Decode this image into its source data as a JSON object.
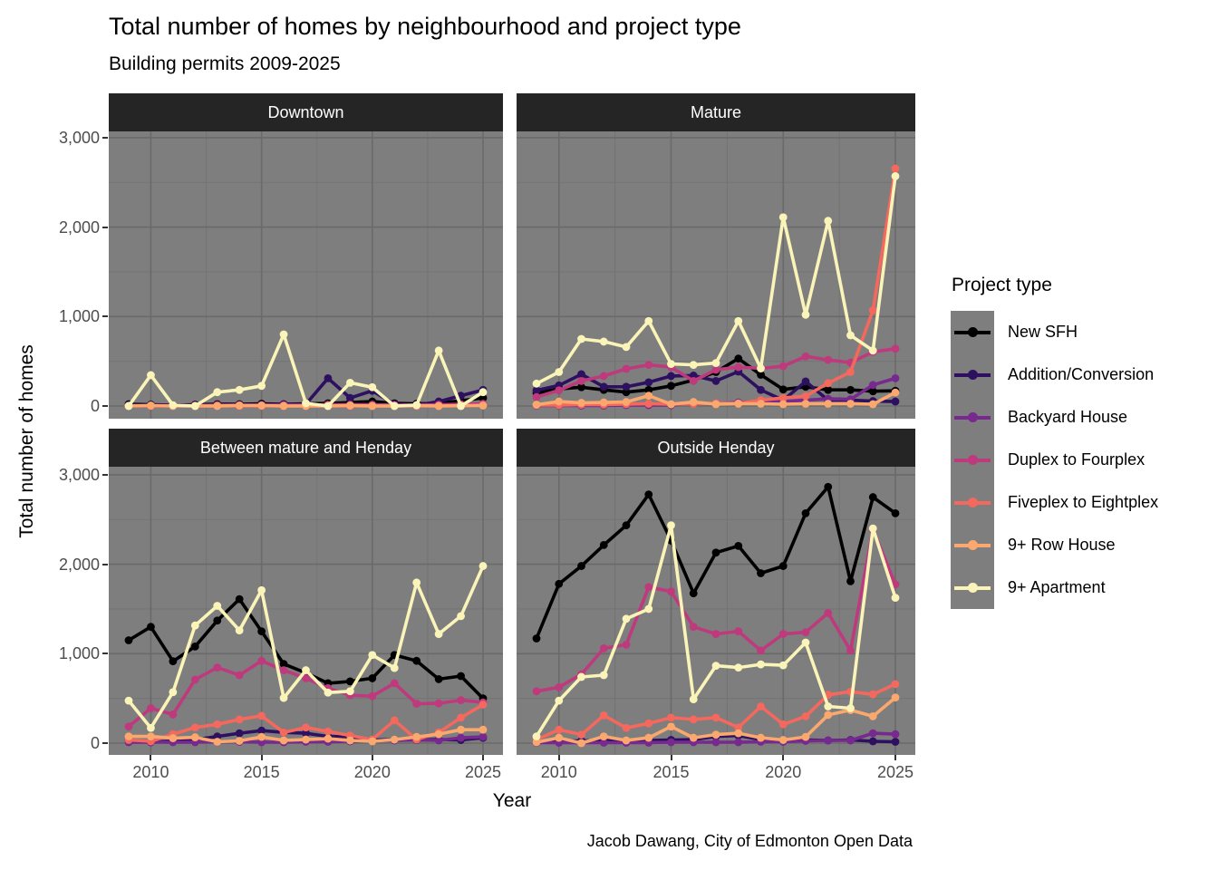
{
  "chart_data": {
    "type": "line",
    "title": "Total number of homes by neighbourhood and project type",
    "subtitle": "Building permits 2009-2025",
    "caption": "Jacob Dawang, City of Edmonton Open Data",
    "xlabel": "Year",
    "ylabel": "Total number of homes",
    "legend_title": "Project type",
    "legend_position": "right",
    "grid": true,
    "x": [
      2009,
      2010,
      2011,
      2012,
      2013,
      2014,
      2015,
      2016,
      2017,
      2018,
      2019,
      2020,
      2021,
      2022,
      2023,
      2024,
      2025
    ],
    "x_tick_years": [
      2010,
      2015,
      2020,
      2025
    ],
    "x_tick_labels": [
      "2010",
      "2015",
      "2020",
      "2025"
    ],
    "x_minor_years": [
      2012.5,
      2017.5,
      2022.5
    ],
    "y_ticks": [
      {
        "value": 0,
        "label": "0"
      },
      {
        "value": 1000,
        "label": "1,000"
      },
      {
        "value": 2000,
        "label": "2,000"
      },
      {
        "value": 3000,
        "label": "3,000"
      }
    ],
    "y_minor": [
      500,
      1500,
      2500
    ],
    "ylim": [
      0,
      3050
    ],
    "panel_background": "#7E7E7E",
    "grid_major_color": "#6A6A6A",
    "grid_minor_color": "#747474",
    "strip_background": "#252525",
    "strip_text_color": "#FFFFFF",
    "axis_text_color": "#4D4D4D",
    "series_names": [
      "New SFH",
      "Addition/Conversion",
      "Backyard House",
      "Duplex to Fourplex",
      "Fiveplex to Eightplex",
      "9+ Row House",
      "9+ Apartment"
    ],
    "series_colors": [
      "#000000",
      "#2D1160",
      "#78298F",
      "#BE3A7D",
      "#F4685E",
      "#FBA86F",
      "#FAF4B8"
    ],
    "facets": [
      {
        "title": "Downtown",
        "series": [
          [
            20,
            15,
            10,
            15,
            20,
            20,
            25,
            20,
            25,
            30,
            40,
            50,
            30,
            25,
            30,
            60,
            90
          ],
          [
            10,
            10,
            10,
            10,
            10,
            15,
            15,
            20,
            20,
            310,
            90,
            170,
            20,
            10,
            50,
            115,
            180
          ],
          [
            0,
            0,
            0,
            0,
            0,
            0,
            0,
            0,
            0,
            0,
            0,
            5,
            5,
            5,
            10,
            10,
            15
          ],
          [
            5,
            5,
            5,
            5,
            10,
            10,
            10,
            10,
            10,
            15,
            15,
            15,
            10,
            10,
            15,
            20,
            25
          ],
          [
            0,
            0,
            0,
            0,
            0,
            0,
            0,
            0,
            0,
            0,
            0,
            0,
            0,
            0,
            0,
            0,
            10
          ],
          [
            0,
            5,
            0,
            0,
            0,
            5,
            5,
            0,
            0,
            0,
            5,
            0,
            0,
            5,
            0,
            5,
            5
          ],
          [
            0,
            345,
            10,
            0,
            155,
            180,
            225,
            800,
            30,
            0,
            260,
            210,
            0,
            10,
            620,
            0,
            155
          ]
        ]
      },
      {
        "title": "Mature",
        "series": [
          [
            145,
            190,
            210,
            180,
            155,
            180,
            225,
            290,
            380,
            530,
            350,
            185,
            215,
            180,
            180,
            165,
            170
          ],
          [
            175,
            230,
            355,
            215,
            215,
            265,
            335,
            340,
            280,
            385,
            180,
            65,
            275,
            65,
            65,
            55,
            50
          ],
          [
            5,
            5,
            5,
            5,
            10,
            10,
            10,
            30,
            25,
            40,
            50,
            50,
            65,
            80,
            75,
            235,
            310
          ],
          [
            100,
            175,
            280,
            335,
            415,
            460,
            435,
            280,
            405,
            435,
            420,
            445,
            555,
            515,
            485,
            605,
            640
          ],
          [
            10,
            10,
            15,
            15,
            20,
            25,
            20,
            25,
            30,
            30,
            65,
            90,
            110,
            255,
            380,
            1070,
            2655
          ],
          [
            15,
            50,
            35,
            40,
            45,
            115,
            20,
            45,
            20,
            25,
            25,
            20,
            25,
            25,
            25,
            20,
            150
          ],
          [
            250,
            380,
            750,
            720,
            660,
            950,
            470,
            460,
            480,
            950,
            420,
            2110,
            1020,
            2070,
            790,
            620,
            2570
          ]
        ]
      },
      {
        "title": "Between mature and Henday",
        "series": [
          [
            1150,
            1300,
            915,
            1080,
            1370,
            1610,
            1250,
            885,
            785,
            670,
            690,
            725,
            985,
            920,
            715,
            750,
            500
          ],
          [
            35,
            10,
            25,
            40,
            75,
            110,
            140,
            120,
            110,
            75,
            70,
            35,
            40,
            35,
            40,
            35,
            60
          ],
          [
            10,
            10,
            10,
            10,
            15,
            15,
            10,
            10,
            15,
            15,
            20,
            25,
            30,
            35,
            30,
            60,
            70
          ],
          [
            185,
            390,
            320,
            710,
            845,
            760,
            920,
            815,
            725,
            615,
            535,
            525,
            670,
            440,
            445,
            480,
            455
          ],
          [
            35,
            20,
            100,
            175,
            210,
            265,
            305,
            120,
            175,
            130,
            85,
            40,
            255,
            40,
            120,
            285,
            430
          ],
          [
            75,
            75,
            55,
            65,
            15,
            25,
            70,
            30,
            40,
            50,
            30,
            20,
            40,
            70,
            100,
            150,
            150
          ],
          [
            475,
            170,
            570,
            1315,
            1535,
            1260,
            1710,
            505,
            815,
            565,
            580,
            985,
            840,
            1795,
            1220,
            1420,
            1980
          ]
        ]
      },
      {
        "title": "Outside Henday",
        "series": [
          [
            1170,
            1780,
            1980,
            2215,
            2435,
            2780,
            2265,
            1675,
            2130,
            2205,
            1900,
            1980,
            2570,
            2865,
            1810,
            2750,
            2570
          ],
          [
            20,
            20,
            25,
            30,
            25,
            30,
            35,
            40,
            75,
            85,
            40,
            30,
            35,
            30,
            35,
            20,
            15
          ],
          [
            5,
            5,
            5,
            5,
            5,
            5,
            10,
            10,
            10,
            10,
            15,
            15,
            25,
            30,
            30,
            110,
            100
          ],
          [
            580,
            625,
            770,
            1060,
            1100,
            1745,
            1695,
            1300,
            1220,
            1250,
            1035,
            1220,
            1240,
            1455,
            1035,
            2385,
            1775
          ],
          [
            40,
            150,
            95,
            310,
            170,
            220,
            285,
            265,
            285,
            175,
            410,
            210,
            300,
            540,
            575,
            545,
            660
          ],
          [
            10,
            60,
            0,
            75,
            30,
            60,
            185,
            60,
            95,
            110,
            60,
            35,
            70,
            315,
            370,
            300,
            510
          ],
          [
            75,
            475,
            740,
            760,
            1390,
            1500,
            2435,
            490,
            865,
            845,
            880,
            870,
            1125,
            410,
            390,
            2400,
            1625
          ]
        ]
      }
    ]
  }
}
